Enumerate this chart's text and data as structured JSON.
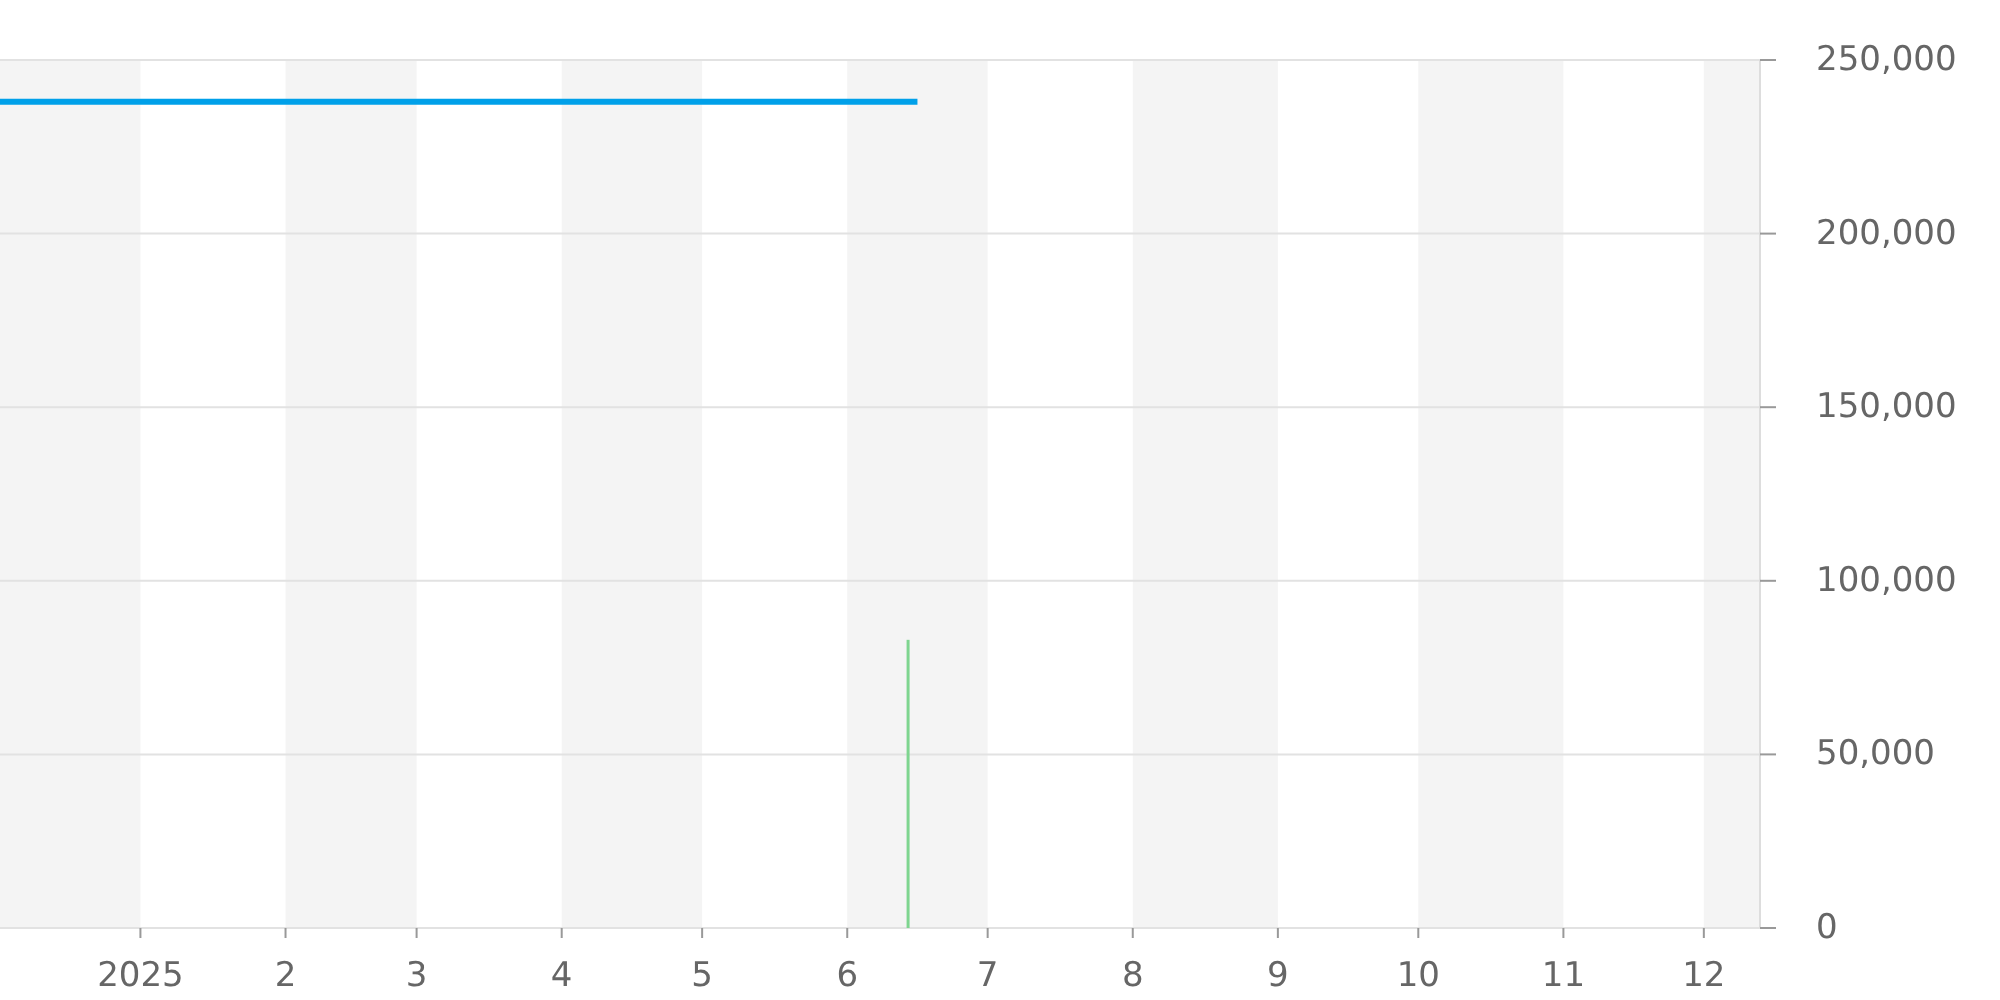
{
  "chart_data": {
    "type": "line",
    "xlim": [
      "2024-12-02",
      "2025-12-13"
    ],
    "xticks": [
      {
        "value": "2025-01-01",
        "label": "2025"
      },
      {
        "value": "2025-02-01",
        "label": "2"
      },
      {
        "value": "2025-03-01",
        "label": "3"
      },
      {
        "value": "2025-04-01",
        "label": "4"
      },
      {
        "value": "2025-05-01",
        "label": "5"
      },
      {
        "value": "2025-06-01",
        "label": "6"
      },
      {
        "value": "2025-07-01",
        "label": "7"
      },
      {
        "value": "2025-08-01",
        "label": "8"
      },
      {
        "value": "2025-09-01",
        "label": "9"
      },
      {
        "value": "2025-10-01",
        "label": "10"
      },
      {
        "value": "2025-11-01",
        "label": "11"
      },
      {
        "value": "2025-12-01",
        "label": "12"
      }
    ],
    "ylim": [
      0,
      250000
    ],
    "yticks": [
      0,
      {
        "value": 50000,
        "label": "50,000"
      },
      {
        "value": 100000,
        "label": "100,000"
      },
      {
        "value": 150000,
        "label": "150,000"
      },
      {
        "value": 200000,
        "label": "200,000"
      },
      {
        "value": 250000,
        "label": "250,000"
      }
    ],
    "grid": "y",
    "bands": [
      {
        "axis": "x",
        "from": "2024-12-02",
        "to": "2025-01-01",
        "color": "#f4f4f4"
      },
      {
        "axis": "x",
        "from": "2025-02-01",
        "to": "2025-03-01",
        "color": "#f4f4f4"
      },
      {
        "axis": "x",
        "from": "2025-04-01",
        "to": "2025-05-01",
        "color": "#f4f4f4"
      },
      {
        "axis": "x",
        "from": "2025-06-01",
        "to": "2025-07-01",
        "color": "#f4f4f4"
      },
      {
        "axis": "x",
        "from": "2025-08-01",
        "to": "2025-09-01",
        "color": "#f4f4f4"
      },
      {
        "axis": "x",
        "from": "2025-10-01",
        "to": "2025-11-01",
        "color": "#f4f4f4"
      },
      {
        "axis": "x",
        "from": "2025-12-01",
        "to": "2025-12-13",
        "color": "#f4f4f4"
      }
    ],
    "series": [
      {
        "type": "bar",
        "color": "#7ed58f",
        "x": [
          "2025-06-14"
        ],
        "values": [
          83000
        ]
      },
      {
        "color": "#00a0e9",
        "x": [
          "2024-12-02",
          "2025-06-16"
        ],
        "values": [
          238000,
          238000
        ]
      }
    ]
  }
}
